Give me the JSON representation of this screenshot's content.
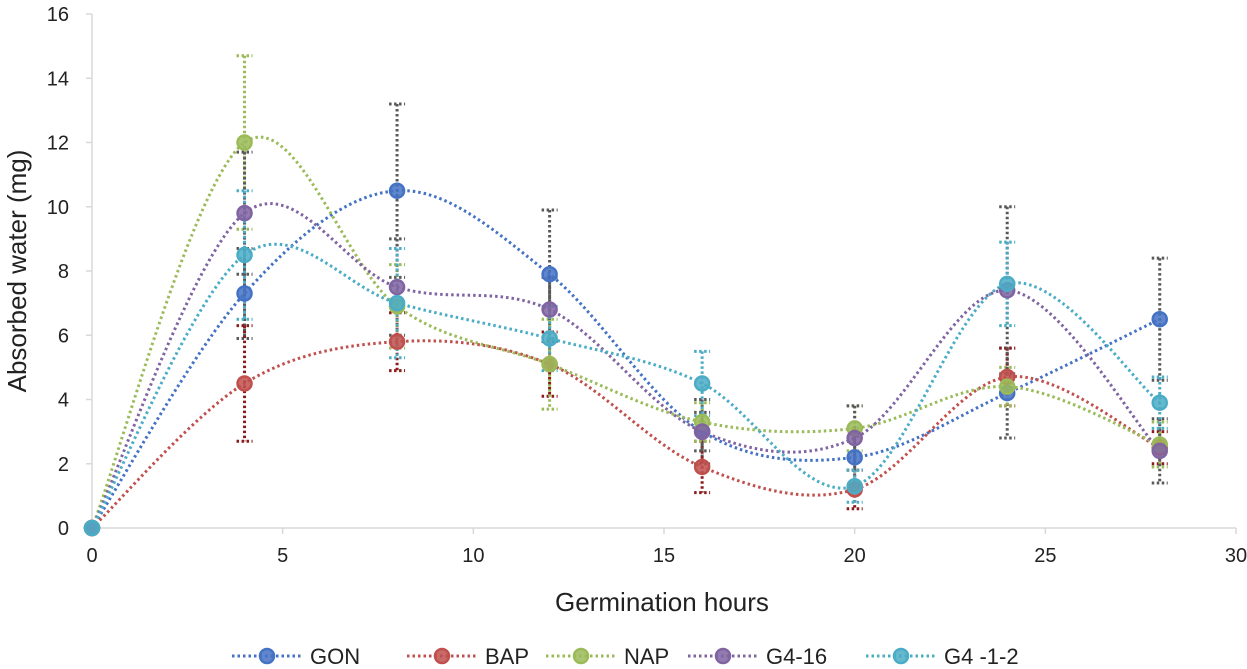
{
  "chart_data": {
    "type": "scatter",
    "style": "smooth dotted lines with markers and error bars",
    "title": "",
    "xlabel": "Germination hours",
    "ylabel": "Absorbed water (mg)",
    "xlim": [
      0,
      30
    ],
    "ylim": [
      0,
      16
    ],
    "xticks": [
      0,
      5,
      10,
      15,
      20,
      25,
      30
    ],
    "yticks": [
      0,
      2,
      4,
      6,
      8,
      10,
      12,
      14,
      16
    ],
    "grid": false,
    "legend": "bottom",
    "x": [
      0,
      4,
      8,
      12,
      16,
      20,
      24,
      28
    ],
    "series": [
      {
        "name": "GON",
        "color": "#4472C4",
        "errColor": "#595959",
        "values": [
          0,
          7.3,
          10.5,
          7.9,
          3.0,
          2.2,
          4.2,
          6.5
        ],
        "errors": [
          0,
          1.4,
          2.7,
          2.0,
          1.0,
          0.9,
          1.4,
          1.9
        ]
      },
      {
        "name": "BAP",
        "color": "#C0504D",
        "errColor": "#8B1A1A",
        "values": [
          0,
          4.5,
          5.8,
          5.1,
          1.9,
          1.2,
          4.7,
          2.5
        ],
        "errors": [
          0,
          1.8,
          0.9,
          1.0,
          0.8,
          0.6,
          0.9,
          0.5
        ]
      },
      {
        "name": "NAP",
        "color": "#9BBB59",
        "errColor": "#9BBB59",
        "values": [
          0,
          12.0,
          6.9,
          5.1,
          3.3,
          3.1,
          4.4,
          2.6
        ],
        "errors": [
          0,
          2.7,
          1.3,
          1.4,
          0.6,
          0.7,
          0.6,
          0.7
        ]
      },
      {
        "name": "G4-16",
        "color": "#8064A2",
        "errColor": "#595959",
        "values": [
          0,
          9.8,
          7.5,
          6.8,
          3.0,
          2.8,
          7.4,
          2.4
        ],
        "errors": [
          0,
          1.9,
          1.5,
          1.0,
          0.6,
          1.0,
          2.6,
          1.0
        ]
      },
      {
        "name": "G4 -1-2",
        "color": "#4BACC6",
        "errColor": "#4BACC6",
        "values": [
          0,
          8.5,
          7.0,
          5.9,
          4.5,
          1.3,
          7.6,
          3.9
        ],
        "errors": [
          0,
          2.0,
          1.7,
          1.0,
          1.0,
          0.5,
          1.3,
          0.8
        ]
      }
    ]
  }
}
